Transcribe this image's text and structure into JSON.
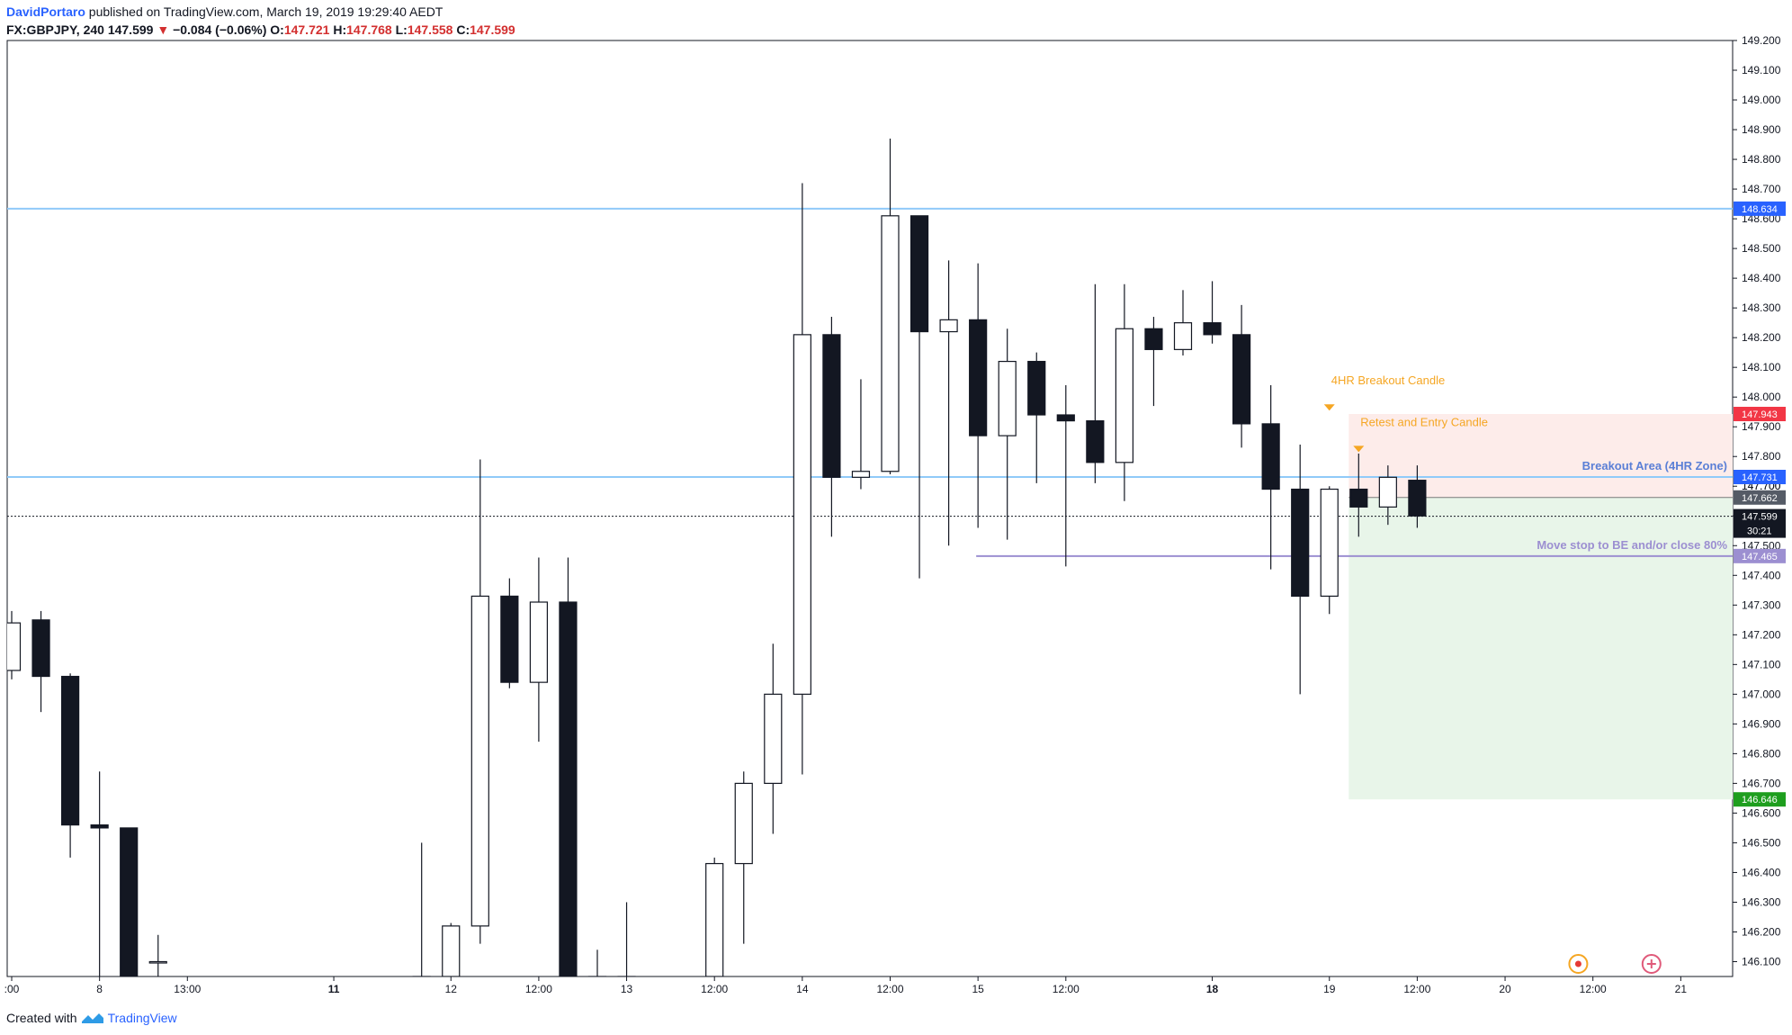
{
  "header": {
    "author": "DavidPortaro",
    "published": " published on TradingView.com, March 19, 2019 19:29:40 AEDT",
    "symbol": "FX:GBPJPY, 240",
    "price": "147.599",
    "arrow": "▼",
    "change": "−0.084 (−0.06%)",
    "o_label": "O:",
    "o_val": "147.721",
    "h_label": "H:",
    "h_val": "147.768",
    "l_label": "L:",
    "l_val": "147.558",
    "c_label": "C:",
    "c_val": "147.599"
  },
  "footer": {
    "created_with": "Created with",
    "brand": "TradingView"
  },
  "colors": {
    "blue_level": "#90caf9",
    "purple_level": "#9c8fd1",
    "orange": "#f5a623",
    "stop_zone": "#fdecea",
    "target_zone": "#e8f5e9",
    "red_label": "#f23645",
    "green_label": "#089981",
    "blue_label": "#2962ff"
  },
  "chart_data": {
    "type": "candlestick",
    "ylim": [
      146.05,
      149.2
    ],
    "yticks": [
      "146.100",
      "146.200",
      "146.300",
      "146.400",
      "146.500",
      "146.600",
      "146.700",
      "146.800",
      "146.900",
      "147.000",
      "147.100",
      "147.200",
      "147.300",
      "147.400",
      "147.500",
      "147.600",
      "147.700",
      "147.800",
      "147.900",
      "148.000",
      "148.100",
      "148.200",
      "148.300",
      "148.400",
      "148.500",
      "148.600",
      "148.700",
      "148.800",
      "148.900",
      "149.000",
      "149.100",
      "149.200"
    ],
    "xticks": [
      {
        "label": ":00",
        "i": 0,
        "bold": false
      },
      {
        "label": "8",
        "i": 3,
        "bold": false
      },
      {
        "label": "13:00",
        "i": 6,
        "bold": false
      },
      {
        "label": "11",
        "i": 11,
        "bold": true
      },
      {
        "label": "12",
        "i": 15,
        "bold": false
      },
      {
        "label": "12:00",
        "i": 18,
        "bold": false
      },
      {
        "label": "13",
        "i": 21,
        "bold": false
      },
      {
        "label": "12:00",
        "i": 24,
        "bold": false
      },
      {
        "label": "14",
        "i": 27,
        "bold": false
      },
      {
        "label": "12:00",
        "i": 30,
        "bold": false
      },
      {
        "label": "15",
        "i": 33,
        "bold": false
      },
      {
        "label": "12:00",
        "i": 36,
        "bold": false
      },
      {
        "label": "18",
        "i": 41,
        "bold": true
      },
      {
        "label": "19",
        "i": 45,
        "bold": false
      },
      {
        "label": "12:00",
        "i": 48,
        "bold": false
      },
      {
        "label": "20",
        "i": 51,
        "bold": false
      },
      {
        "label": "12:00",
        "i": 54,
        "bold": false
      },
      {
        "label": "21",
        "i": 57,
        "bold": false
      }
    ],
    "candles": [
      {
        "o": 147.08,
        "h": 147.28,
        "l": 147.05,
        "c": 147.24
      },
      {
        "o": 147.25,
        "h": 147.28,
        "l": 146.94,
        "c": 147.06
      },
      {
        "o": 147.06,
        "h": 147.07,
        "l": 146.45,
        "c": 146.56
      },
      {
        "o": 146.56,
        "h": 146.74,
        "l": 146.05,
        "c": 146.55
      },
      {
        "o": 146.55,
        "h": 146.55,
        "l": 146.05,
        "c": 146.05
      },
      {
        "o": 146.1,
        "h": 146.19,
        "l": 146.05,
        "c": 146.1
      },
      null,
      null,
      null,
      null,
      null,
      null,
      null,
      null,
      {
        "o": 146.05,
        "h": 146.5,
        "l": 146.05,
        "c": 146.05
      },
      {
        "o": 146.05,
        "h": 146.23,
        "l": 146.05,
        "c": 146.22
      },
      {
        "o": 146.22,
        "h": 147.79,
        "l": 146.16,
        "c": 147.33
      },
      {
        "o": 147.33,
        "h": 147.39,
        "l": 147.02,
        "c": 147.04
      },
      {
        "o": 147.04,
        "h": 147.46,
        "l": 146.84,
        "c": 147.31
      },
      {
        "o": 147.31,
        "h": 147.46,
        "l": 146.05,
        "c": 146.05
      },
      {
        "o": 146.05,
        "h": 146.14,
        "l": 146.05,
        "c": 146.05
      },
      {
        "o": 146.05,
        "h": 146.3,
        "l": 146.05,
        "c": 146.05
      },
      null,
      null,
      {
        "o": 146.05,
        "h": 146.45,
        "l": 146.05,
        "c": 146.43
      },
      {
        "o": 146.43,
        "h": 146.74,
        "l": 146.16,
        "c": 146.7
      },
      {
        "o": 146.7,
        "h": 147.17,
        "l": 146.53,
        "c": 147.0
      },
      {
        "o": 147.0,
        "h": 148.72,
        "l": 146.73,
        "c": 148.21
      },
      {
        "o": 148.21,
        "h": 148.27,
        "l": 147.53,
        "c": 147.73
      },
      {
        "o": 147.73,
        "h": 148.06,
        "l": 147.69,
        "c": 147.75
      },
      {
        "o": 147.75,
        "h": 148.87,
        "l": 147.74,
        "c": 148.61
      },
      {
        "o": 148.61,
        "h": 148.61,
        "l": 147.39,
        "c": 148.22
      },
      {
        "o": 148.22,
        "h": 148.46,
        "l": 147.5,
        "c": 148.26
      },
      {
        "o": 148.26,
        "h": 148.45,
        "l": 147.56,
        "c": 147.87
      },
      {
        "o": 147.87,
        "h": 148.23,
        "l": 147.52,
        "c": 148.12
      },
      {
        "o": 148.12,
        "h": 148.15,
        "l": 147.71,
        "c": 147.94
      },
      {
        "o": 147.94,
        "h": 148.04,
        "l": 147.43,
        "c": 147.92
      },
      {
        "o": 147.92,
        "h": 148.38,
        "l": 147.71,
        "c": 147.78
      },
      {
        "o": 147.78,
        "h": 148.38,
        "l": 147.65,
        "c": 148.23
      },
      {
        "o": 148.23,
        "h": 148.27,
        "l": 147.97,
        "c": 148.16
      },
      {
        "o": 148.16,
        "h": 148.36,
        "l": 148.14,
        "c": 148.25
      },
      {
        "o": 148.25,
        "h": 148.39,
        "l": 148.18,
        "c": 148.21
      },
      {
        "o": 148.21,
        "h": 148.31,
        "l": 147.83,
        "c": 147.91
      },
      {
        "o": 147.91,
        "h": 148.04,
        "l": 147.42,
        "c": 147.69
      },
      {
        "o": 147.69,
        "h": 147.84,
        "l": 147.0,
        "c": 147.33
      },
      {
        "o": 147.33,
        "h": 147.7,
        "l": 147.27,
        "c": 147.69
      },
      {
        "o": 147.69,
        "h": 147.81,
        "l": 147.53,
        "c": 147.63
      },
      {
        "o": 147.63,
        "h": 147.77,
        "l": 147.57,
        "c": 147.73
      },
      {
        "o": 147.72,
        "h": 147.77,
        "l": 147.56,
        "c": 147.6
      }
    ],
    "levels": [
      {
        "price": 148.634,
        "label": "148.634",
        "color": "#90caf9",
        "labelColor": "#2962ff"
      },
      {
        "price": 147.731,
        "label": "147.731",
        "color": "#90caf9",
        "labelColor": "#2962ff"
      },
      {
        "price": 147.465,
        "label": "147.465",
        "color": "#9c8fd1",
        "labelColor": "#9c8fd1",
        "start_i": 33
      }
    ],
    "position": {
      "start_i": 46,
      "entry": 147.662,
      "stop": 147.943,
      "target": 146.646,
      "entry_label": "147.662",
      "stop_label": "147.943",
      "target_label": "146.646"
    },
    "last_price": {
      "value": 147.599,
      "label": "147.599",
      "countdown": "30:21"
    },
    "overlap_label": "147.700",
    "annotations": [
      {
        "text": "4HR Breakout Candle",
        "i": 45,
        "price": 148.0,
        "color": "#f5a623"
      },
      {
        "text": "Retest and Entry Candle",
        "i": 46,
        "price": 147.86,
        "color": "#f5a623"
      },
      {
        "text": "Breakout Area (4HR Zone)",
        "price": 147.731,
        "color": "#5a7fd6"
      },
      {
        "text": "Move stop to BE and/or close 80%",
        "price": 147.465,
        "color": "#9c8fd1"
      }
    ],
    "grid": false
  }
}
